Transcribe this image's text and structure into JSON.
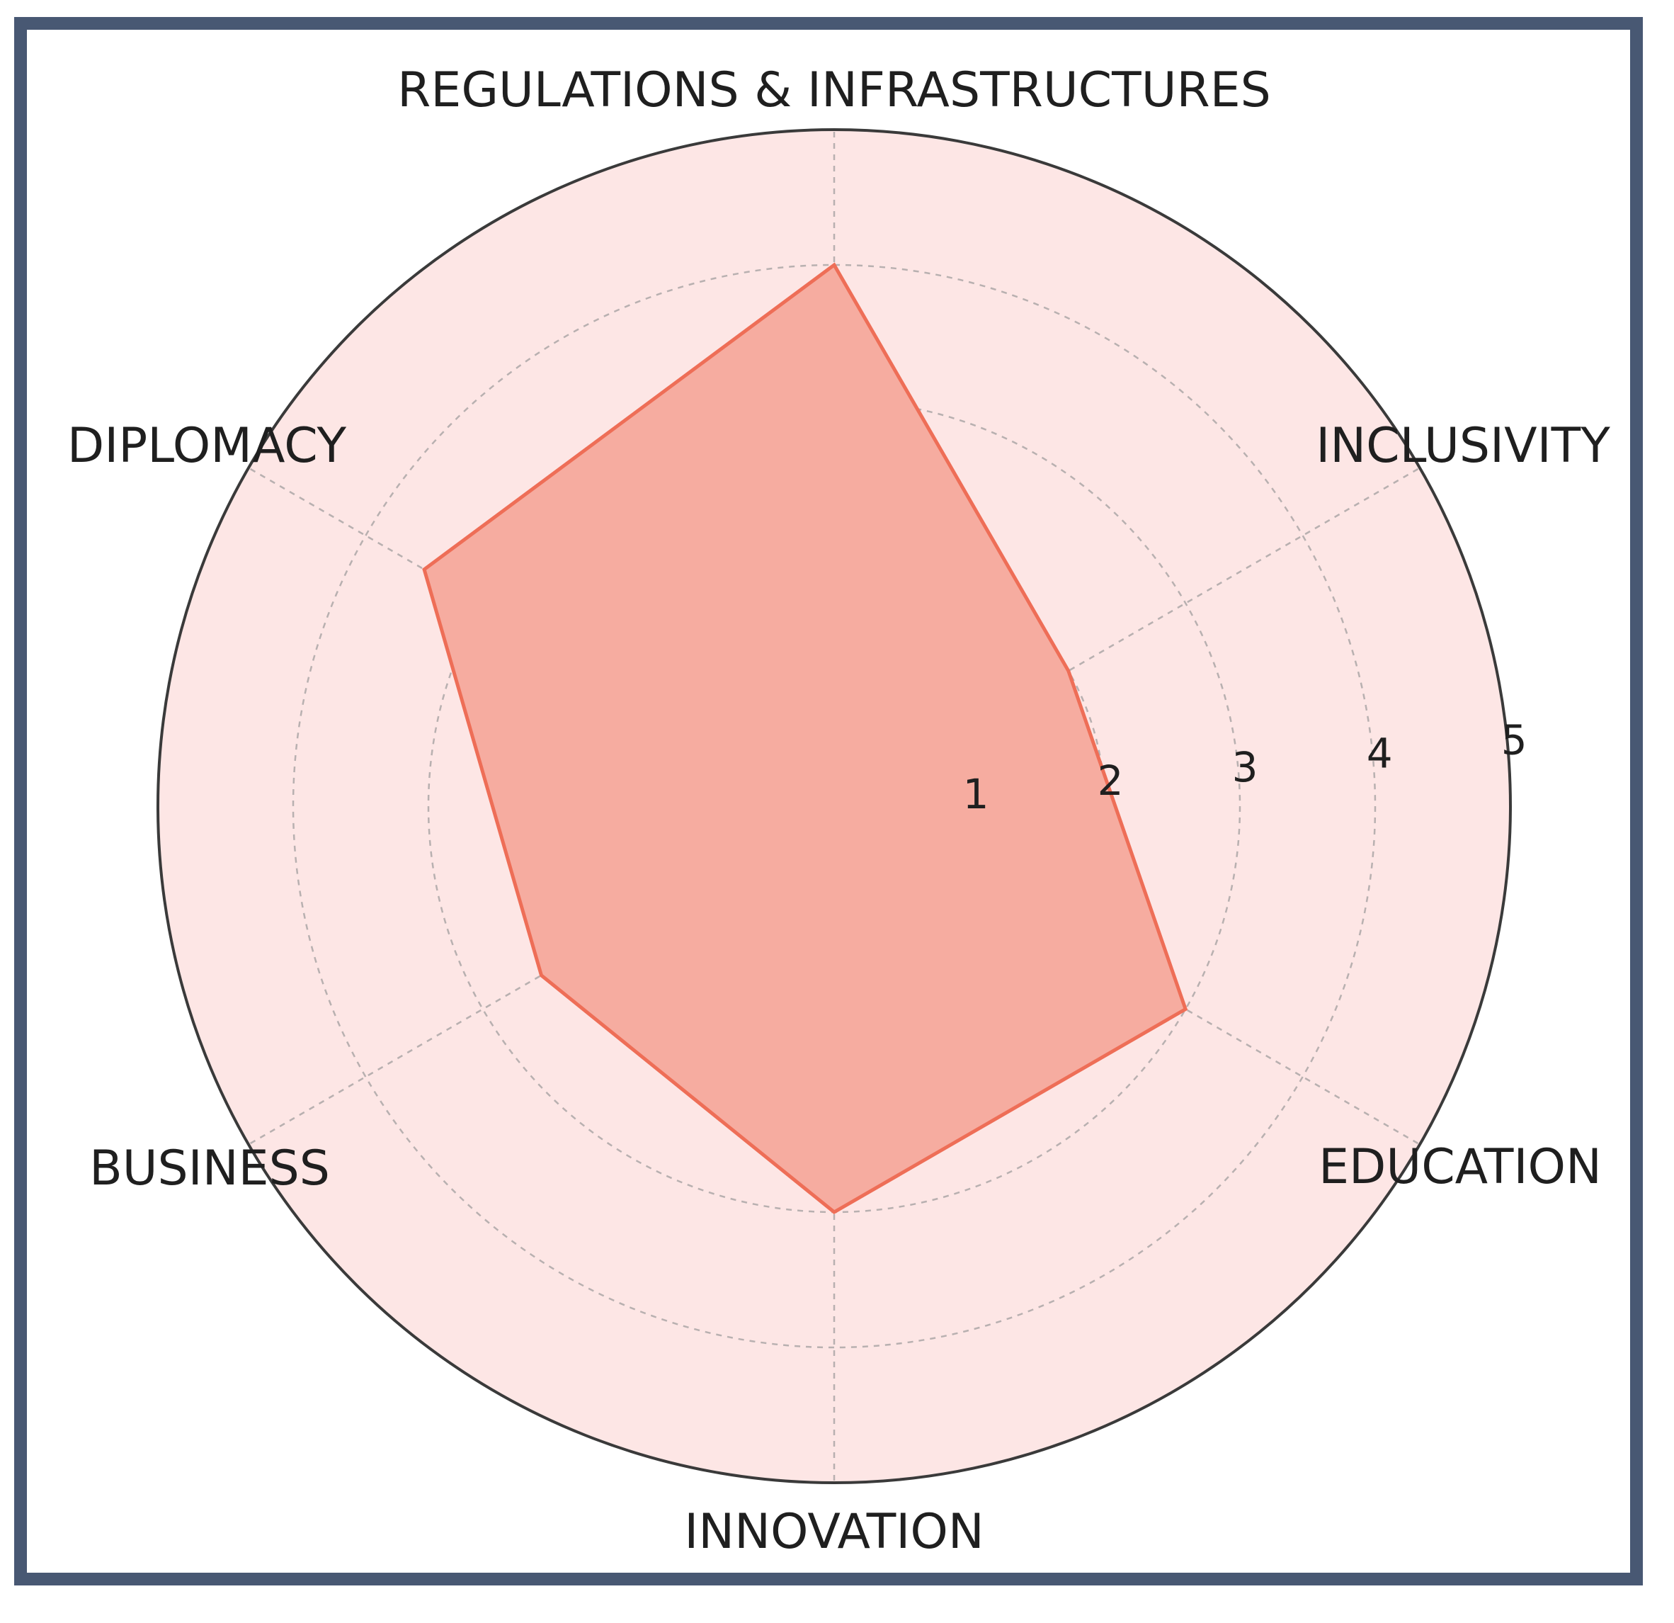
{
  "chart_data": {
    "type": "radar",
    "axes": [
      "REGULATIONS & INFRASTRUCTURES",
      "INCLUSIVITY",
      "EDUCATION",
      "INNOVATION",
      "BUSINESS",
      "DIPLOMACY"
    ],
    "values": [
      4,
      2,
      3,
      3,
      2.5,
      3.5
    ],
    "r_ticks": [
      "1",
      "2",
      "3",
      "4",
      "5"
    ],
    "r_max": 5,
    "grid": true,
    "colors": {
      "frame": "#485873",
      "background_disc": "#fde6e5",
      "polygon_fill": "#f6aca0",
      "polygon_stroke": "#ee6e57",
      "grid": "#b8b0b0",
      "outer_circle": "#3a3a3a"
    }
  }
}
